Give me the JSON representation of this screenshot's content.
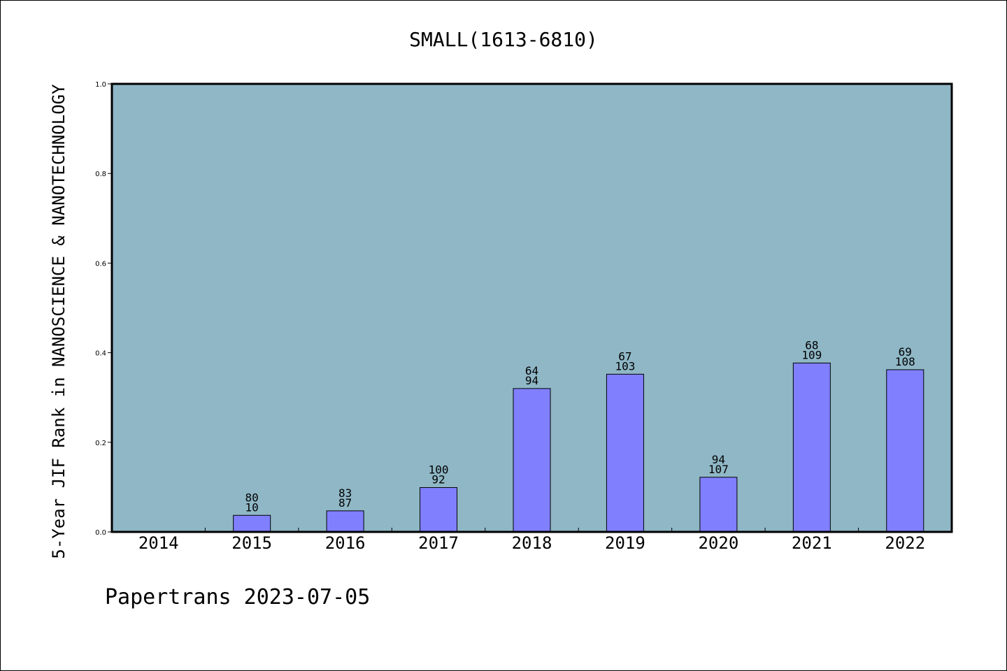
{
  "chart_data": {
    "type": "bar",
    "title": "SMALL(1613-6810)",
    "xlabel": "",
    "ylabel": "5-Year JIF Rank in NANOSCIENCE & NANOTECHNOLOGY",
    "ylim": [
      0,
      1.0
    ],
    "yticks": [
      "0.0",
      "0.2",
      "0.4",
      "0.6",
      "0.8",
      "1.0"
    ],
    "categories": [
      "2014",
      "2015",
      "2016",
      "2017",
      "2018",
      "2019",
      "2020",
      "2021",
      "2022"
    ],
    "values": [
      null,
      0.037,
      0.047,
      0.099,
      0.32,
      0.352,
      0.122,
      0.377,
      0.362
    ],
    "labels_top": [
      "",
      "80",
      "83",
      "100",
      "64",
      "67",
      "94",
      "68",
      "69"
    ],
    "labels_bottom": [
      "",
      "10",
      "87",
      "92",
      "94",
      "103",
      "107",
      "109",
      "108"
    ],
    "plot_background": "#8fb7c6",
    "bar_color": "#8080ff",
    "grid": false
  },
  "footer": "Papertrans 2023-07-05"
}
